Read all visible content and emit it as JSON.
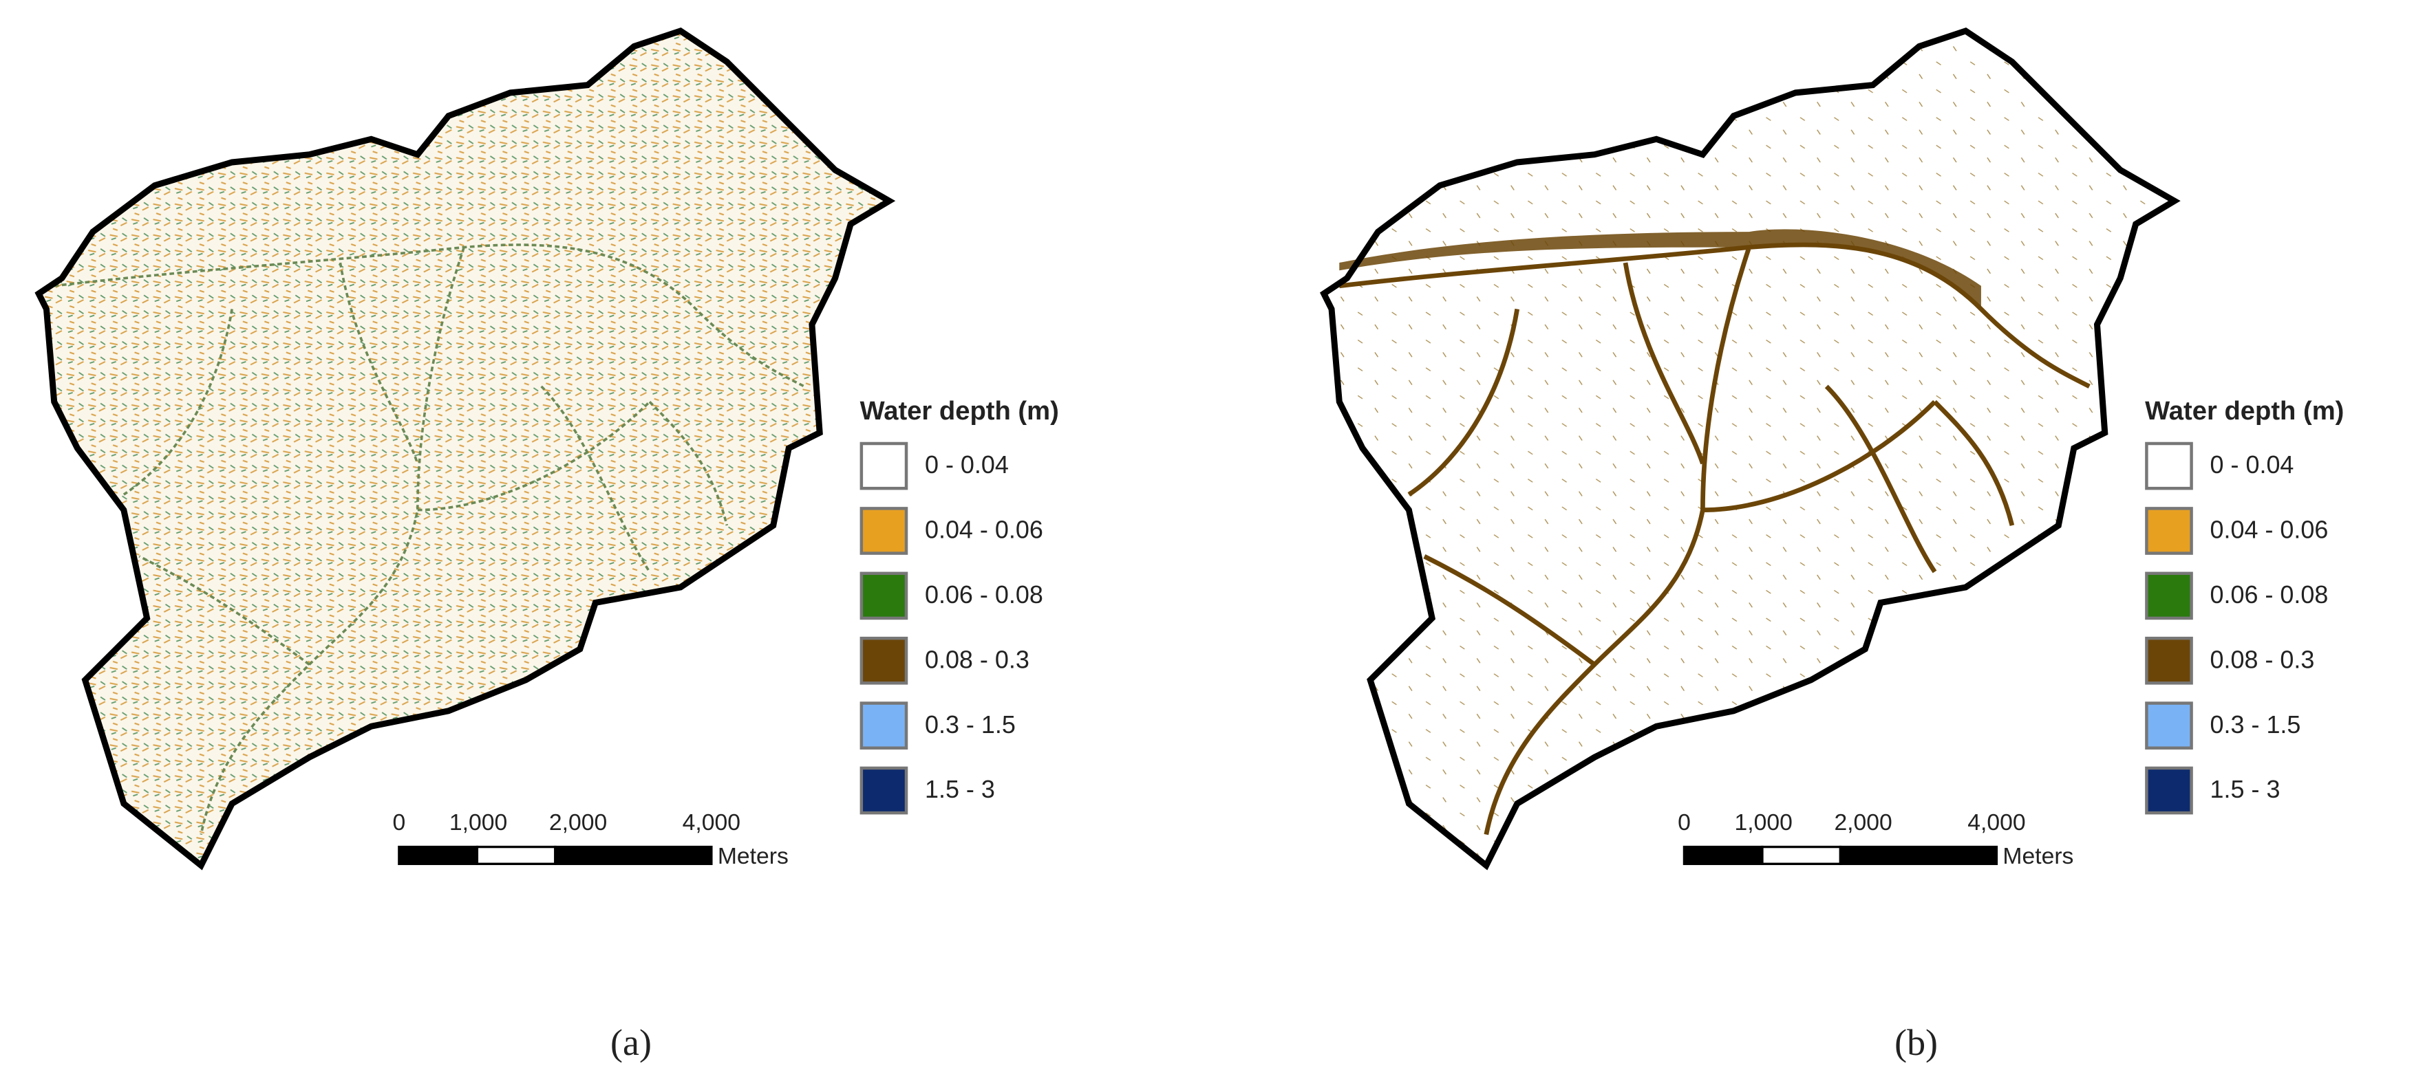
{
  "panels": [
    {
      "label": "(a)",
      "legend": {
        "title": "Water depth (m)",
        "items": [
          {
            "label": "0 - 0.04",
            "color": "#ffffff"
          },
          {
            "label": "0.04 - 0.06",
            "color": "#e8a021"
          },
          {
            "label": "0.06 - 0.08",
            "color": "#2a7a0e"
          },
          {
            "label": "0.08 - 0.3",
            "color": "#6b4508"
          },
          {
            "label": "0.3 - 1.5",
            "color": "#7ab3f5"
          },
          {
            "label": "1.5 - 3",
            "color": "#0d2a6e"
          }
        ]
      },
      "scale_bar": {
        "ticks": [
          "0",
          "1,000",
          "2,000",
          "4,000"
        ],
        "unit": "Meters"
      }
    },
    {
      "label": "(b)",
      "legend": {
        "title": "Water depth (m)",
        "items": [
          {
            "label": "0 - 0.04",
            "color": "#ffffff"
          },
          {
            "label": "0.04 - 0.06",
            "color": "#e8a021"
          },
          {
            "label": "0.06 - 0.08",
            "color": "#2a7a0e"
          },
          {
            "label": "0.08 - 0.3",
            "color": "#6b4508"
          },
          {
            "label": "0.3 - 1.5",
            "color": "#7ab3f5"
          },
          {
            "label": "1.5 - 3",
            "color": "#0d2a6e"
          }
        ]
      },
      "scale_bar": {
        "ticks": [
          "0",
          "1,000",
          "2,000",
          "4,000"
        ],
        "unit": "Meters"
      }
    }
  ]
}
